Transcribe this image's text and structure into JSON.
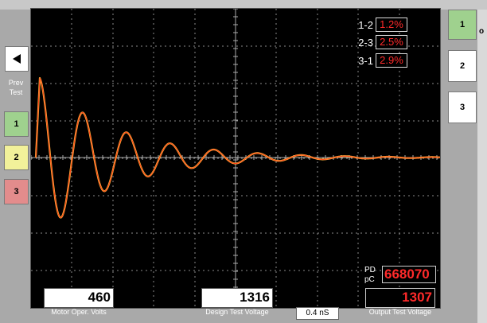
{
  "navigation": {
    "prev_label": "Prev\nTest",
    "left_tests": [
      "1",
      "2",
      "3"
    ],
    "right_tests": [
      "1",
      "2",
      "3"
    ],
    "edge_glyph": "o"
  },
  "imbalance": [
    {
      "label": "1-2",
      "value": "1.2%"
    },
    {
      "label": "2-3",
      "value": "2.5%"
    },
    {
      "label": "3-1",
      "value": "2.9%"
    }
  ],
  "pd": {
    "label": "PD\npC",
    "value": "668070"
  },
  "readouts": {
    "motor_volts": "460",
    "motor_caption": "Motor Oper. Volts",
    "design_voltage": "1316",
    "design_caption": "Design Test Voltage",
    "output_voltage": "1307",
    "output_caption": "Output Test Voltage",
    "timebase": "0.4 nS"
  },
  "colors": {
    "trace": "#ffb23a",
    "trace_core": "#ff3a1a",
    "grid": "#8a8a8a",
    "alert": "#ff2a2a"
  },
  "icons": {
    "back": "triangle-left-icon"
  }
}
